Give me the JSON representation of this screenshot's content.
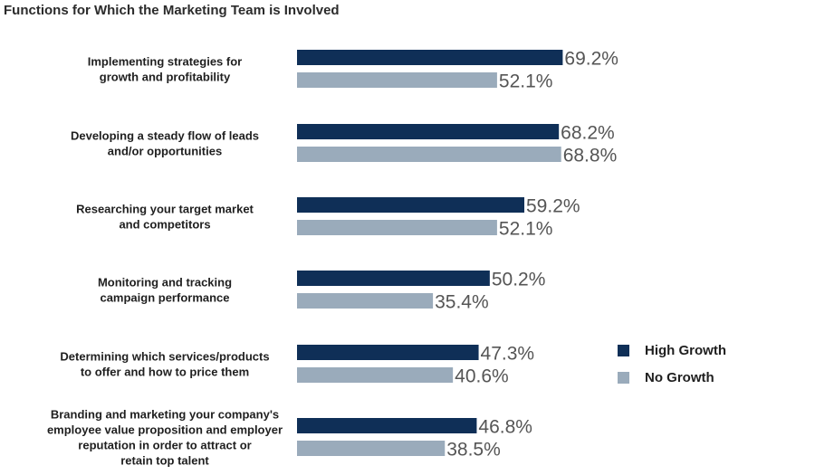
{
  "chart_data": {
    "type": "bar",
    "orientation": "horizontal",
    "title": "Functions for Which the Marketing Team is Involved",
    "categories": [
      "Implementing strategies for growth and profitability",
      "Developing a steady flow of leads and/or opportunities",
      "Researching your target market and competitors",
      "Monitoring and tracking campaign performance",
      "Determining which services/products to offer and how to price them",
      "Branding and marketing your company's employee value proposition and employer reputation in order to attract or retain top talent"
    ],
    "category_lines": [
      [
        "Implementing strategies for",
        "growth and profitability"
      ],
      [
        "Developing a steady flow of leads",
        "and/or opportunities"
      ],
      [
        "Researching your target market",
        "and competitors"
      ],
      [
        "Monitoring and tracking",
        "campaign performance"
      ],
      [
        "Determining which services/products",
        "to offer and how to price them"
      ],
      [
        "Branding and marketing your company's",
        "employee value proposition and employer",
        "reputation in order to attract or",
        "retain top talent"
      ]
    ],
    "series": [
      {
        "name": "High Growth",
        "color": "#0f2f57",
        "values": [
          69.2,
          68.2,
          59.2,
          50.2,
          47.3,
          46.8
        ],
        "labels": [
          "69.2%",
          "68.2%",
          "59.2%",
          "50.2%",
          "47.3%",
          "46.8%"
        ]
      },
      {
        "name": "No Growth",
        "color": "#9aabbb",
        "values": [
          52.1,
          68.8,
          52.1,
          35.4,
          40.6,
          38.5
        ],
        "labels": [
          "52.1%",
          "68.8%",
          "52.1%",
          "35.4%",
          "40.6%",
          "38.5%"
        ]
      }
    ],
    "xlim": [
      0,
      70
    ],
    "grid": false,
    "legend_position": "right"
  }
}
